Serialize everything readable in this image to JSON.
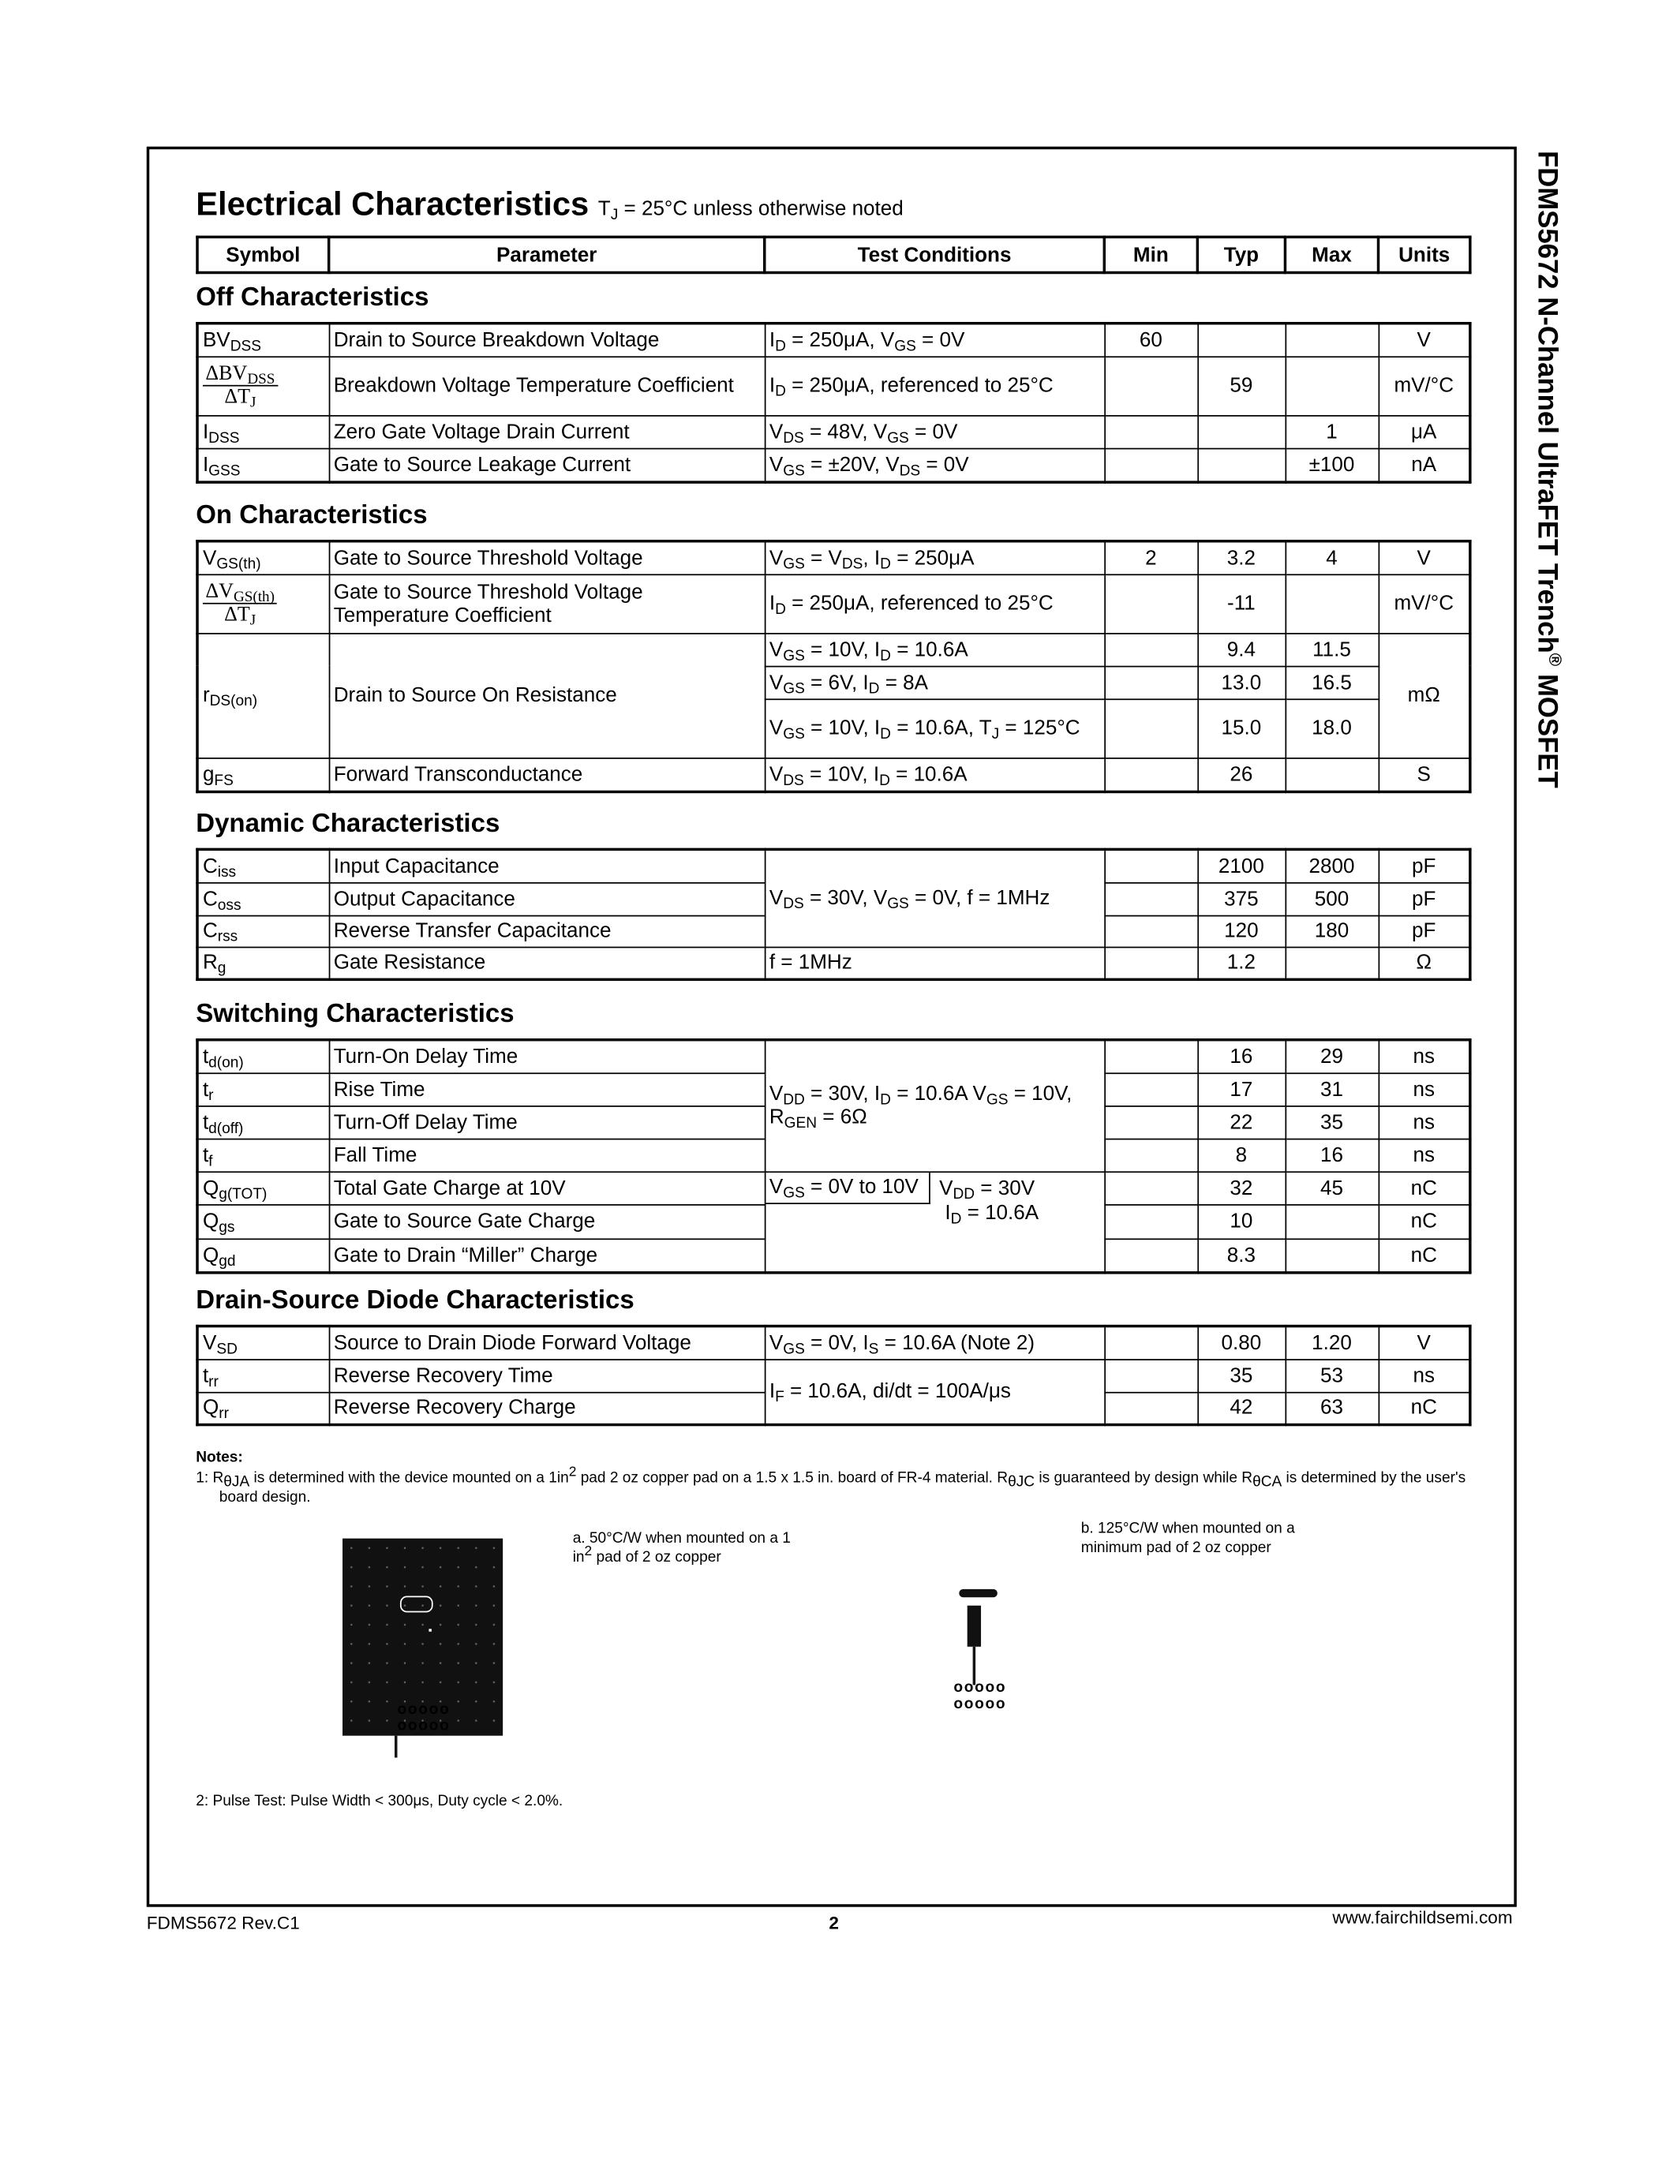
{
  "side_title": {
    "text": "FDMS5672 N-Channel UltraFET Trench",
    "reg": "®",
    "suffix": " MOSFET"
  },
  "title": {
    "main": "Electrical Characteristics",
    "cond": "T_{J} = 25°C unless otherwise noted"
  },
  "header": [
    "Symbol",
    "Parameter",
    "Test Conditions",
    "Min",
    "Typ",
    "Max",
    "Units"
  ],
  "sections": [
    {
      "title": "Off Characteristics",
      "rows": [
        {
          "sym": "BV_{DSS}",
          "param": "Drain to Source Breakdown Voltage",
          "cond": "I_{D} = 250μA, V_{GS} = 0V",
          "min": "60",
          "typ": "",
          "max": "",
          "units": "V"
        },
        {
          "sym_frac": [
            "ΔBV_{DSS}",
            "ΔT_{J}"
          ],
          "param": "Breakdown Voltage Temperature Coefficient",
          "cond": "I_{D} = 250μA, referenced to 25°C",
          "min": "",
          "typ": "59",
          "max": "",
          "units": "mV/°C",
          "tall": true
        },
        {
          "sym": "I_{DSS}",
          "param": "Zero Gate Voltage Drain Current",
          "cond": "V_{DS} = 48V, V_{GS} = 0V",
          "min": "",
          "typ": "",
          "max": "1",
          "units": "μA"
        },
        {
          "sym": "I_{GSS}",
          "param": "Gate to Source Leakage Current",
          "cond": "V_{GS} = ±20V, V_{DS} = 0V",
          "min": "",
          "typ": "",
          "max": "±100",
          "units": "nA"
        }
      ]
    },
    {
      "title": "On Characteristics",
      "rows": [
        {
          "sym": "V_{GS(th)}",
          "param": "Gate to Source Threshold Voltage",
          "cond": "V_{GS} = V_{DS},  I_{D} = 250μA",
          "min": "2",
          "typ": "3.2",
          "max": "4",
          "units": "V"
        },
        {
          "sym_frac": [
            "ΔV_{GS(th)}",
            "ΔT_{J}"
          ],
          "param": "Gate to Source Threshold Voltage Temperature Coefficient",
          "cond": "I_{D} = 250μA, referenced to 25°C",
          "min": "",
          "typ": "-11",
          "max": "",
          "units": "mV/°C",
          "tall": true
        },
        {
          "sym": "r_{DS(on)}",
          "param": "Drain to Source On Resistance",
          "span": 3,
          "cond": "V_{GS} = 10V,  I_{D} = 10.6A",
          "min": "",
          "typ": "9.4",
          "max": "11.5",
          "units": "mΩ",
          "units_span": 3
        },
        {
          "cond": "V_{GS} = 6V,   I_{D} = 8A",
          "min": "",
          "typ": "13.0",
          "max": "16.5"
        },
        {
          "cond": "V_{GS} = 10V,  I_{D} = 10.6A, T_{J} = 125°C",
          "min": "",
          "typ": "15.0",
          "max": "18.0",
          "tall": true
        },
        {
          "sym": "g_{FS}",
          "param": "Forward Transconductance",
          "cond": "V_{DS} = 10V,  I_{D} = 10.6A",
          "min": "",
          "typ": "26",
          "max": "",
          "units": "S"
        }
      ]
    },
    {
      "title": "Dynamic Characteristics",
      "rows": [
        {
          "sym": "C_{iss}",
          "param": "Input Capacitance",
          "cond": "V_{DS} = 30V, V_{GS} = 0V, f = 1MHz",
          "cond_span": 3,
          "min": "",
          "typ": "2100",
          "max": "2800",
          "units": "pF"
        },
        {
          "sym": "C_{oss}",
          "param": "Output Capacitance",
          "min": "",
          "typ": "375",
          "max": "500",
          "units": "pF"
        },
        {
          "sym": "C_{rss}",
          "param": "Reverse Transfer Capacitance",
          "min": "",
          "typ": "120",
          "max": "180",
          "units": "pF"
        },
        {
          "sym": "R_{g}",
          "param": "Gate Resistance",
          "cond": "f = 1MHz",
          "min": "",
          "typ": "1.2",
          "max": "",
          "units": "Ω"
        }
      ]
    },
    {
      "title": "Switching Characteristics",
      "rows": [
        {
          "sym": "t_{d(on)}",
          "param": "Turn-On Delay Time",
          "cond": "V_{DD} = 30V, I_{D} = 10.6A V_{GS} = 10V, R_{GEN} = 6Ω",
          "cond_span": 4,
          "min": "",
          "typ": "16",
          "max": "29",
          "units": "ns"
        },
        {
          "sym": "t_{r}",
          "param": "Rise Time",
          "min": "",
          "typ": "17",
          "max": "31",
          "units": "ns"
        },
        {
          "sym": "t_{d(off)}",
          "param": "Turn-Off Delay Time",
          "min": "",
          "typ": "22",
          "max": "35",
          "units": "ns"
        },
        {
          "sym": "t_{f}",
          "param": "Fall Time",
          "min": "",
          "typ": "8",
          "max": "16",
          "units": "ns"
        },
        {
          "sym": "Q_{g(TOT)}",
          "param": "Total Gate Charge at 10V",
          "cond_split": [
            "V_{GS} = 0V to 10V",
            "V_{DD} = 30V",
            "I_{D} = 10.6A"
          ],
          "cond_span": 3,
          "min": "",
          "typ": "32",
          "max": "45",
          "units": "nC"
        },
        {
          "sym": "Q_{gs}",
          "param": "Gate to Source Gate Charge",
          "min": "",
          "typ": "10",
          "max": "",
          "units": "nC"
        },
        {
          "sym": "Q_{gd}",
          "param": "Gate to Drain “Miller” Charge",
          "min": "",
          "typ": "8.3",
          "max": "",
          "units": "nC"
        }
      ]
    },
    {
      "title": "Drain-Source Diode Characteristics",
      "rows": [
        {
          "sym": "V_{SD}",
          "param": "Source to Drain Diode  Forward Voltage",
          "cond": "V_{GS} = 0V, I_{S} = 10.6A     (Note 2)",
          "min": "",
          "typ": "0.80",
          "max": "1.20",
          "units": "V"
        },
        {
          "sym": "t_{rr}",
          "param": "Reverse Recovery Time",
          "cond": "I_{F} = 10.6A, di/dt = 100A/μs",
          "cond_span": 2,
          "min": "",
          "typ": "35",
          "max": "53",
          "units": "ns"
        },
        {
          "sym": "Q_{rr}",
          "param": "Reverse Recovery Charge",
          "min": "",
          "typ": "42",
          "max": "63",
          "units": "nC"
        }
      ]
    }
  ],
  "notes": {
    "heading": "Notes:",
    "note1": "1:  R_{θJA} is determined with the device mounted on a 1in^{2} pad 2 oz copper pad on a 1.5 x 1.5 in. board of FR-4 material. R_{θJC} is guaranteed by design while R_{θCA} is determined by the user's board design.",
    "fig_a": "a. 50°C/W when mounted  on a 1 in^{2} pad of 2 oz copper",
    "fig_b": "b. 125°C/W when mounted on  a minimum pad of 2 oz copper",
    "note2": "2:  Pulse Test: Pulse Width < 300μs, Duty cycle < 2.0%."
  },
  "footer": {
    "left": "FDMS5672 Rev.C1",
    "page": "2",
    "right": "www.fairchildsemi.com"
  }
}
